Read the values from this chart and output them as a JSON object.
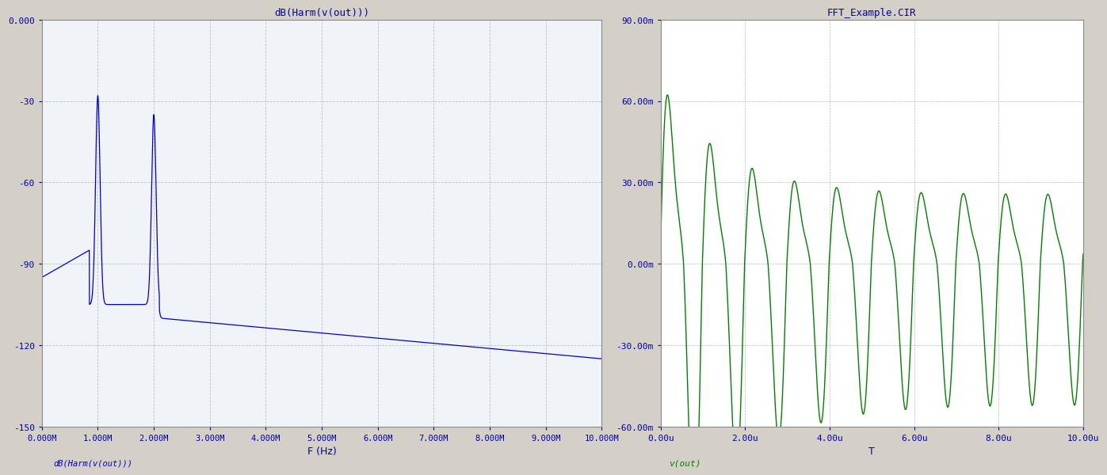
{
  "left_title": "dB(Harm(v(out)))",
  "left_xlabel": "F (Hz)",
  "left_ylabel": "dB(Harm(v(out)))",
  "left_xlim": [
    0,
    10000000.0
  ],
  "left_ylim": [
    -150,
    0
  ],
  "left_yticks": [
    0,
    -30,
    -60,
    -90,
    -120,
    -150
  ],
  "left_xticks": [
    0,
    1000000.0,
    2000000.0,
    3000000.0,
    4000000.0,
    5000000.0,
    6000000.0,
    7000000.0,
    8000000.0,
    9000000.0,
    10000000.0
  ],
  "left_xtick_labels": [
    "0.000M",
    "1.000M",
    "2.000M",
    "3.000M",
    "4.000M",
    "5.000M",
    "6.000M",
    "7.000M",
    "8.000M",
    "9.000M",
    "10.000M"
  ],
  "left_line_color": "#0000cc",
  "left_bg_color": "#f0f4f8",
  "right_title": "FFT_Example.CIR",
  "right_xlabel": "T",
  "right_ylabel": "v(out)",
  "right_xlim": [
    0,
    1e-05
  ],
  "right_ylim": [
    -0.06,
    0.09
  ],
  "right_yticks": [
    -0.06,
    -0.03,
    0,
    0.03,
    0.06,
    0.09
  ],
  "right_ytick_labels": [
    "-60.00m",
    "-30.00m",
    "0.00m",
    "30.00m",
    "60.00m",
    "90.00m"
  ],
  "right_xticks": [
    0,
    2e-06,
    4e-06,
    6e-06,
    8e-06,
    1e-05
  ],
  "right_xtick_labels": [
    "0.00u",
    "2.00u",
    "4.00u",
    "6.00u",
    "8.00u",
    "10.00u"
  ],
  "right_line_color": "#008000",
  "right_bg_color": "#ffffff",
  "outer_bg": "#d4d0c8",
  "title_color": "#0000aa"
}
